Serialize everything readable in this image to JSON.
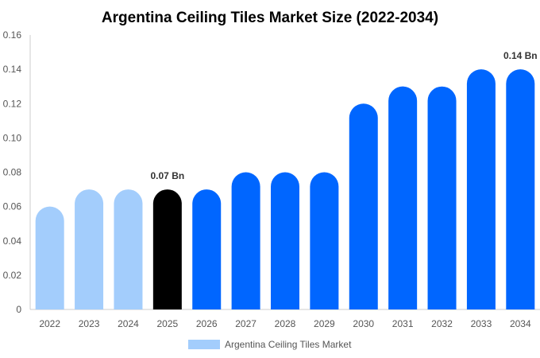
{
  "chart_data": {
    "type": "bar",
    "title": "Argentina Ceiling Tiles Market Size (2022-2034)",
    "categories": [
      "2022",
      "2023",
      "2024",
      "2025",
      "2026",
      "2027",
      "2028",
      "2029",
      "2030",
      "2031",
      "2032",
      "2033",
      "2034"
    ],
    "series": [
      {
        "name": "Argentina Ceiling Tiles Market",
        "values": [
          0.06,
          0.07,
          0.07,
          0.07,
          0.07,
          0.08,
          0.08,
          0.08,
          0.12,
          0.13,
          0.13,
          0.14,
          0.14
        ]
      }
    ],
    "bar_colors": [
      "#a3cdfc",
      "#a3cdfc",
      "#a3cdfc",
      "#000000",
      "#0066ff",
      "#0066ff",
      "#0066ff",
      "#0066ff",
      "#0066ff",
      "#0066ff",
      "#0066ff",
      "#0066ff",
      "#0066ff"
    ],
    "data_labels": [
      {
        "category": "2025",
        "text": "0.07 Bn"
      },
      {
        "category": "2034",
        "text": "0.14 Bn"
      }
    ],
    "ylim": [
      0,
      0.16
    ],
    "yticks": [
      "0",
      "0.02",
      "0.04",
      "0.06",
      "0.08",
      "0.10",
      "0.12",
      "0.14",
      "0.16"
    ],
    "xlabel": "",
    "ylabel": "",
    "grid": false,
    "legend": {
      "position": "bottom-center",
      "color": "#a3cdfc"
    }
  }
}
